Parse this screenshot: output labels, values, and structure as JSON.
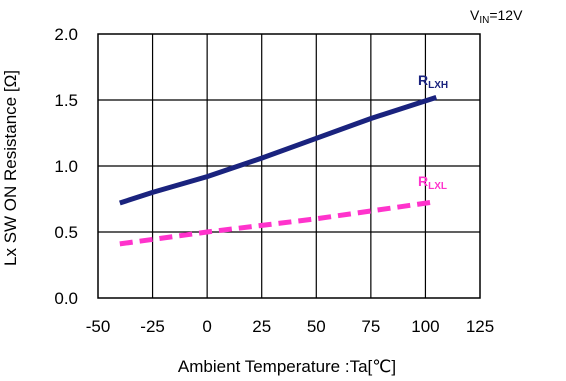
{
  "chart_data": {
    "type": "line",
    "condition_label": {
      "main": "V",
      "sub": "IN",
      "suffix": "=12V"
    },
    "xlabel": "Ambient Temperature :Ta[℃]",
    "ylabel": "Lx SW ON Resistance [Ω]",
    "xlim": [
      -50,
      125
    ],
    "ylim": [
      0,
      2.0
    ],
    "x_ticks": [
      "-50",
      "-25",
      "0",
      "25",
      "50",
      "75",
      "100",
      "125"
    ],
    "x_tick_values": [
      -50,
      -25,
      0,
      25,
      50,
      75,
      100,
      125
    ],
    "y_ticks": [
      "0.0",
      "0.5",
      "1.0",
      "1.5",
      "2.0"
    ],
    "y_tick_values": [
      0,
      0.5,
      1.0,
      1.5,
      2.0
    ],
    "grid": true,
    "series": [
      {
        "name": "RLXH",
        "label_main": "R",
        "label_sub": "LXH",
        "color": "#1a237e",
        "line_style": "solid",
        "x": [
          -40,
          -25,
          0,
          25,
          50,
          75,
          105
        ],
        "y": [
          0.72,
          0.8,
          0.92,
          1.06,
          1.21,
          1.36,
          1.52
        ]
      },
      {
        "name": "RLXL",
        "label_main": "R",
        "label_sub": "LXL",
        "color": "#ff33cc",
        "line_style": "dashed",
        "x": [
          -40,
          0,
          50,
          105
        ],
        "y": [
          0.41,
          0.5,
          0.6,
          0.73
        ]
      }
    ]
  }
}
